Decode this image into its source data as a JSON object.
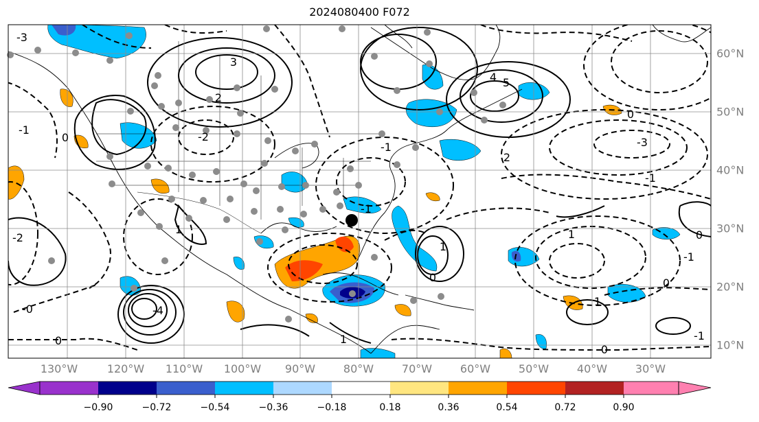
{
  "title": "2024080400 F072",
  "map": {
    "lon_labels": [
      "130°W",
      "120°W",
      "110°W",
      "100°W",
      "90°W",
      "80°W",
      "70°W",
      "60°W",
      "50°W",
      "40°W",
      "30°W"
    ],
    "lat_labels": [
      "60°N",
      "50°N",
      "40°N",
      "30°N",
      "20°N",
      "10°N"
    ],
    "grid": true,
    "contour_labels": [
      "-3",
      "3",
      "2",
      "-2",
      "-1",
      "0",
      "1",
      "-2",
      "4",
      "5",
      "-1",
      "-3",
      "0",
      "-1",
      "0",
      "1",
      "-1",
      "0",
      "-4",
      "1",
      "-1",
      "0",
      "-1",
      "0",
      "1",
      "0",
      "-0",
      "2",
      "1"
    ]
  },
  "colorbar": {
    "ticks": [
      "−0.90",
      "−0.72",
      "−0.54",
      "−0.36",
      "−0.18",
      "0.18",
      "0.36",
      "0.54",
      "0.72",
      "0.90"
    ],
    "colors": [
      "#9932cc",
      "#00008b",
      "#3a5fcd",
      "#00bfff",
      "#add8ff",
      "#ffffff",
      "#ffe680",
      "#ffa500",
      "#ff4500",
      "#b22222",
      "#ff80b0"
    ],
    "extend": "both"
  }
}
